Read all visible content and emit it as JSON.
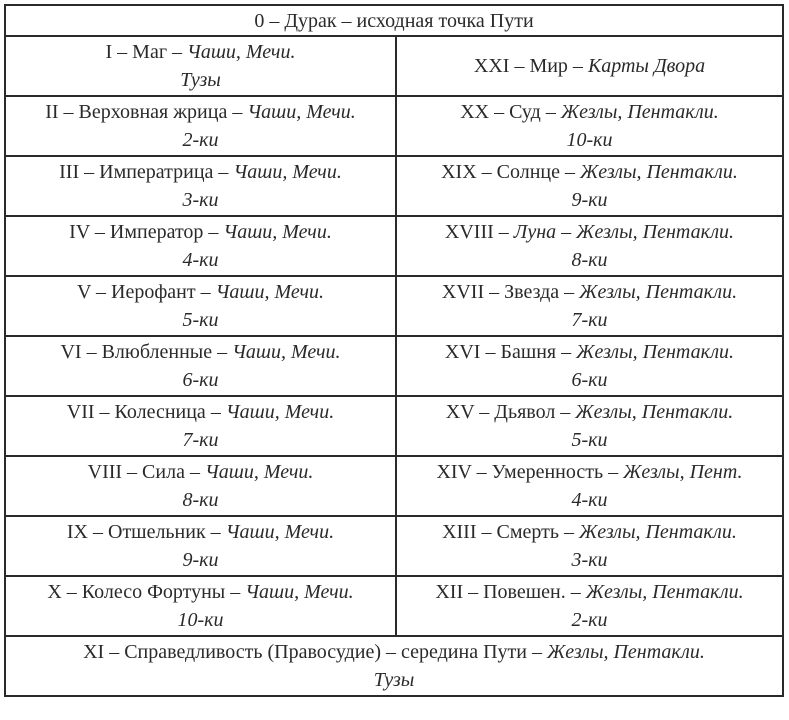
{
  "header": {
    "text": "0 – Дурак – исходная точка Пути"
  },
  "rows": [
    {
      "left": {
        "main": "I – Маг – ",
        "italic": "Чаши, Мечи.",
        "line2": "Тузы"
      },
      "right": {
        "main": "XXI – Мир – ",
        "italic": "Карты Двора",
        "line2": ""
      }
    },
    {
      "left": {
        "main": "II – Верховная жрица – ",
        "italic": "Чаши, Мечи.",
        "line2": "2-ки"
      },
      "right": {
        "main": "XX – Суд – ",
        "italic": "Жезлы, Пентакли.",
        "line2": "10-ки"
      }
    },
    {
      "left": {
        "main": "III – Императрица – ",
        "italic": "Чаши, Мечи.",
        "line2": "3-ки"
      },
      "right": {
        "main": "XIX – Солнце – ",
        "italic": "Жезлы, Пентакли.",
        "line2": "9-ки"
      }
    },
    {
      "left": {
        "main": "IV – Император – ",
        "italic": "Чаши, Мечи.",
        "line2": "4-ки"
      },
      "right": {
        "main": "XVIII – ",
        "italic": "Луна – Жезлы, Пентакли.",
        "line2": "8-ки"
      }
    },
    {
      "left": {
        "main": "V – Иерофант – ",
        "italic": "Чаши, Мечи.",
        "line2": "5-ки"
      },
      "right": {
        "main": "XVII – Звезда – ",
        "italic": "Жезлы, Пентакли.",
        "line2": "7-ки"
      }
    },
    {
      "left": {
        "main": "VI – Влюбленные – ",
        "italic": "Чаши, Мечи.",
        "line2": "6-ки"
      },
      "right": {
        "main": "XVI – Башня – ",
        "italic": "Жезлы, Пентакли.",
        "line2": "6-ки"
      }
    },
    {
      "left": {
        "main": "VII – Колесница – ",
        "italic": "Чаши, Мечи.",
        "line2": "7-ки"
      },
      "right": {
        "main": "XV – Дьявол – ",
        "italic": "Жезлы, Пентакли.",
        "line2": "5-ки"
      }
    },
    {
      "left": {
        "main": "VIII – Сила – ",
        "italic": "Чаши, Мечи.",
        "line2": "8-ки"
      },
      "right": {
        "main": "XIV – Умеренность – ",
        "italic": "Жезлы, Пент.",
        "line2": "4-ки"
      }
    },
    {
      "left": {
        "main": "IX – Отшельник – ",
        "italic": "Чаши, Мечи.",
        "line2": "9-ки"
      },
      "right": {
        "main": "XIII – Смерть – ",
        "italic": "Жезлы, Пентакли.",
        "line2": "3-ки"
      }
    },
    {
      "left": {
        "main": "X – Колесо Фортуны – ",
        "italic": "Чаши, Мечи.",
        "line2": "10-ки"
      },
      "right": {
        "main": "XII – Повешен. – ",
        "italic": "Жезлы, Пентакли.",
        "line2": "2-ки"
      }
    }
  ],
  "footer": {
    "main": "XI – Справедливость (Правосудие) – середина Пути – ",
    "italic": "Жезлы, Пентакли.",
    "line2": "Тузы"
  }
}
